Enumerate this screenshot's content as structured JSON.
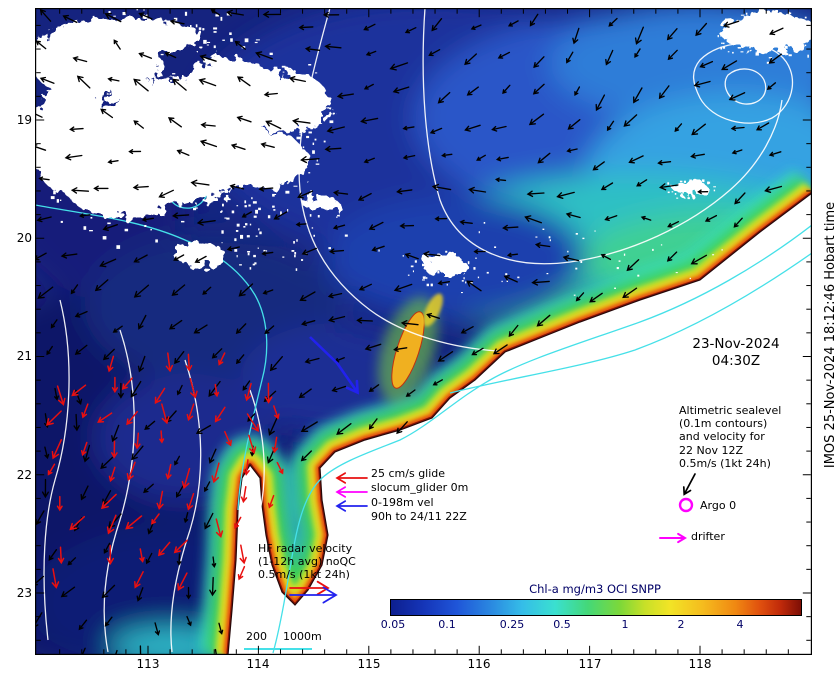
{
  "figure": {
    "date_label": {
      "line1": "23-Nov-2024",
      "line2": "04:30Z"
    },
    "credit_vertical": "IMOS 25-Nov-2024 18:12:46 Hobart time"
  },
  "legends": {
    "altimetry": {
      "lines": [
        "Altimetric sealevel",
        "(0.1m contours)",
        "and velocity for",
        "22 Nov 12Z",
        "0.5m/s (1kt 24h)"
      ]
    },
    "argo": {
      "label": "Argo 0"
    },
    "drifter": {
      "label": "drifter"
    },
    "glider": {
      "lines": [
        "25 cm/s glide",
        "slocum_glider 0m",
        "0-198m vel",
        "90h to 24/11 22Z"
      ]
    },
    "hf_radar": {
      "lines": [
        "HF radar velocity",
        "(1-12h avg) noQC",
        "0.5m/s (1kt 24h)"
      ]
    },
    "isobaths": {
      "label_200": "200",
      "label_1000": "1000m"
    }
  },
  "colorbar": {
    "title": "Chl-a mg/m3 OCI SNPP",
    "tick_labels": [
      "0.05",
      "0.1",
      "0.25",
      "0.5",
      "1",
      "2",
      "4"
    ]
  },
  "axes": {
    "x_tick_labels": [
      "113",
      "114",
      "115",
      "116",
      "117",
      "118"
    ],
    "y_tick_labels": [
      "19",
      "20",
      "21",
      "22",
      "23"
    ]
  },
  "colors": {
    "magenta_marker": "#ff00ff",
    "glider_track_blue": "#2222ee",
    "hf_vector_red": "#e81010",
    "velocity_vector_black": "#000000",
    "sealevel_contour_white": "#ffffff",
    "isobath_cyan": "#45e0e8",
    "colorbar_label_navy": "#000066"
  },
  "chart_data": {
    "type": "heatmap",
    "title": "Chl-a mg/m3 OCI SNPP",
    "variable": "Chlorophyll-a",
    "units": "mg/m3",
    "colorbar_scale": "log",
    "colorbar_ticks": [
      0.05,
      0.1,
      0.25,
      0.5,
      1,
      2,
      4
    ],
    "x_axis": {
      "tick_values": [
        113,
        114,
        115,
        116,
        117,
        118
      ]
    },
    "y_axis": {
      "tick_values_deg_south": [
        19,
        20,
        21,
        22,
        23
      ]
    },
    "valid_time": "23-Nov-2024 04:30Z",
    "overlays": [
      {
        "name": "altimetric sealevel contours and velocity",
        "contour_interval": "0.1m",
        "velocity_time": "22 Nov 12Z",
        "vector_scale": "0.5m/s (1kt 24h)",
        "style": "white contours, black arrows"
      },
      {
        "name": "HF radar velocity",
        "detail": "(1-12h avg) noQC",
        "vector_scale": "0.5m/s (1kt 24h)",
        "style": "red arrows"
      },
      {
        "name": "slocum_glider 0m",
        "detail": "0-198m vel, 90h to 24/11 22Z",
        "vector_scale": "25 cm/s",
        "style": "blue track"
      },
      {
        "name": "Argo",
        "count": 0,
        "style": "magenta circle"
      },
      {
        "name": "drifter",
        "style": "magenta arrow"
      },
      {
        "name": "isobaths",
        "values_m": [
          200,
          1000
        ],
        "style": "cyan lines"
      }
    ]
  }
}
